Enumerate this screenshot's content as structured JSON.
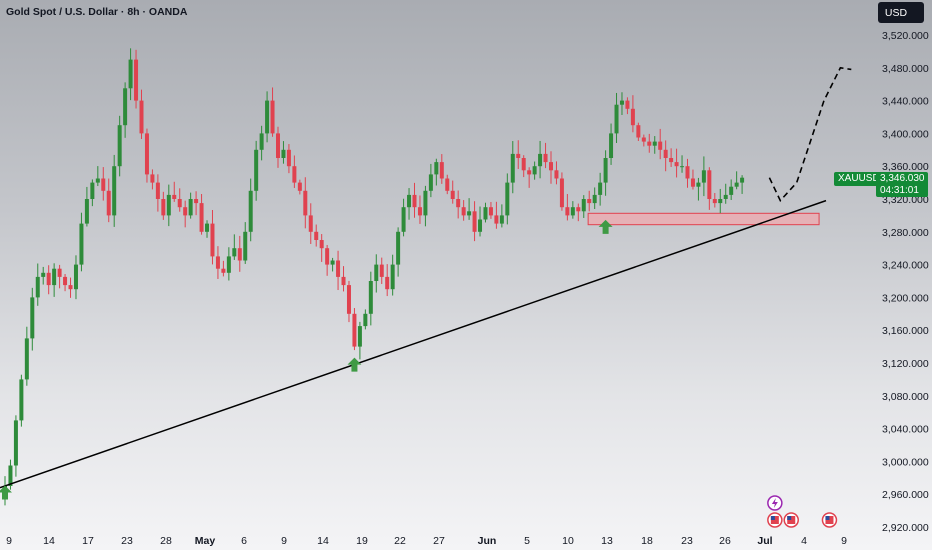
{
  "header": {
    "title": "Gold Spot / U.S. Dollar · 8h · OANDA",
    "currency_button": "USD"
  },
  "price_tag": {
    "symbol": "XAUUSD",
    "price": "3,346.030",
    "countdown": "04:31:01"
  },
  "colors": {
    "up": "#2e8b3a",
    "down": "#e0424f",
    "trendline": "#000000",
    "zone_fill": "#f2a7ad",
    "zone_stroke": "#e0424f",
    "arrow": "#3f9a44"
  },
  "chart_data": {
    "type": "candlestick",
    "title": "Gold Spot / U.S. Dollar · 8h · OANDA",
    "ylim": [
      2915,
      3535
    ],
    "y_ticks": [
      "3,520.000",
      "3,480.000",
      "3,440.000",
      "3,400.000",
      "3,360.000",
      "3,320.000",
      "3,280.000",
      "3,240.000",
      "3,200.000",
      "3,160.000",
      "3,120.000",
      "3,080.000",
      "3,040.000",
      "3,000.000",
      "2,960.000",
      "2,920.000"
    ],
    "x_ticks": [
      "9",
      "14",
      "17",
      "23",
      "28",
      "May",
      "6",
      "9",
      "14",
      "19",
      "22",
      "27",
      "Jun",
      "5",
      "10",
      "13",
      "18",
      "23",
      "26",
      "Jul",
      "4",
      "9"
    ],
    "x_ticks_bold": [
      "May",
      "Jun",
      "Jul"
    ],
    "close_path": [
      2970,
      2995,
      3050,
      3100,
      3150,
      3200,
      3225,
      3230,
      3215,
      3235,
      3225,
      3215,
      3210,
      3240,
      3290,
      3320,
      3340,
      3345,
      3330,
      3300,
      3360,
      3410,
      3455,
      3490,
      3440,
      3400,
      3350,
      3340,
      3320,
      3300,
      3325,
      3320,
      3310,
      3300,
      3320,
      3315,
      3280,
      3290,
      3250,
      3235,
      3230,
      3250,
      3260,
      3245,
      3280,
      3330,
      3380,
      3400,
      3440,
      3400,
      3370,
      3380,
      3360,
      3340,
      3330,
      3300,
      3280,
      3270,
      3260,
      3240,
      3245,
      3225,
      3215,
      3180,
      3140,
      3165,
      3180,
      3220,
      3240,
      3225,
      3210,
      3240,
      3280,
      3310,
      3325,
      3310,
      3300,
      3330,
      3350,
      3365,
      3345,
      3330,
      3320,
      3310,
      3300,
      3305,
      3280,
      3295,
      3310,
      3300,
      3290,
      3300,
      3340,
      3375,
      3370,
      3355,
      3350,
      3360,
      3375,
      3365,
      3355,
      3345,
      3310,
      3300,
      3310,
      3305,
      3320,
      3315,
      3325,
      3340,
      3370,
      3400,
      3435,
      3440,
      3430,
      3410,
      3395,
      3390,
      3385,
      3390,
      3380,
      3370,
      3365,
      3360,
      3360,
      3345,
      3335,
      3340,
      3355,
      3320,
      3315,
      3320,
      3325,
      3335,
      3340,
      3346
    ],
    "candle_count": 136,
    "current_price": 3346.03,
    "trendline": {
      "from": {
        "candle": 0,
        "price": 2968
      },
      "to": {
        "candle": 150,
        "price": 3318
      }
    },
    "support_zone": {
      "price_low": 3296,
      "price_high": 3305,
      "from_candle": 109,
      "to_candle": 148
    },
    "green_arrows": [
      {
        "candle": 0,
        "price": 2962
      },
      {
        "candle": 64,
        "price": 3118
      },
      {
        "candle": 110,
        "price": 3286
      }
    ],
    "projection": [
      {
        "candle": 140,
        "price": 3346
      },
      {
        "candle": 142,
        "price": 3318
      },
      {
        "candle": 145,
        "price": 3340
      },
      {
        "candle": 148,
        "price": 3400
      },
      {
        "candle": 150,
        "price": 3440
      },
      {
        "candle": 153,
        "price": 3480
      },
      {
        "candle": 155,
        "price": 3478
      }
    ],
    "events": [
      {
        "candle": 141,
        "type": "bolt"
      },
      {
        "candle": 141,
        "type": "flag"
      },
      {
        "candle": 144,
        "type": "flag"
      },
      {
        "candle": 151,
        "type": "flag"
      }
    ]
  }
}
